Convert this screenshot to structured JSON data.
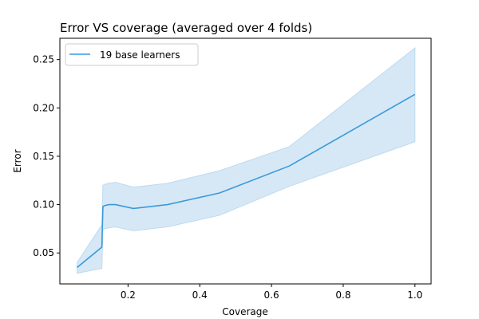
{
  "chart_data": {
    "type": "line",
    "title": "Error VS coverage (averaged over 4 folds)",
    "xlabel": "Coverage",
    "ylabel": "Error",
    "xlim": [
      0.01,
      1.045
    ],
    "ylim": [
      0.018,
      0.272
    ],
    "xticks": [
      0.2,
      0.4,
      0.6,
      0.8,
      1.0
    ],
    "xtick_labels": [
      "0.2",
      "0.4",
      "0.6",
      "0.8",
      "1.0"
    ],
    "yticks": [
      0.05,
      0.1,
      0.15,
      0.2,
      0.25
    ],
    "ytick_labels": [
      "0.05",
      "0.10",
      "0.15",
      "0.20",
      "0.25"
    ],
    "grid": false,
    "legend_position": "top-left",
    "colors": {
      "line": "#3a9ad9",
      "band": "#d6e8f6",
      "band_edge": "#bcdaf0"
    },
    "series": [
      {
        "name": "19 base learners",
        "x": [
          0.058,
          0.127,
          0.13,
          0.135,
          0.147,
          0.165,
          0.215,
          0.31,
          0.455,
          0.65,
          1.0
        ],
        "y": [
          0.035,
          0.056,
          0.098,
          0.099,
          0.1,
          0.1,
          0.096,
          0.1,
          0.112,
          0.14,
          0.214
        ],
        "lower": [
          0.029,
          0.034,
          0.074,
          0.075,
          0.076,
          0.077,
          0.073,
          0.077,
          0.089,
          0.119,
          0.165
        ],
        "upper": [
          0.04,
          0.079,
          0.12,
          0.121,
          0.122,
          0.123,
          0.118,
          0.122,
          0.135,
          0.16,
          0.262
        ]
      }
    ]
  }
}
